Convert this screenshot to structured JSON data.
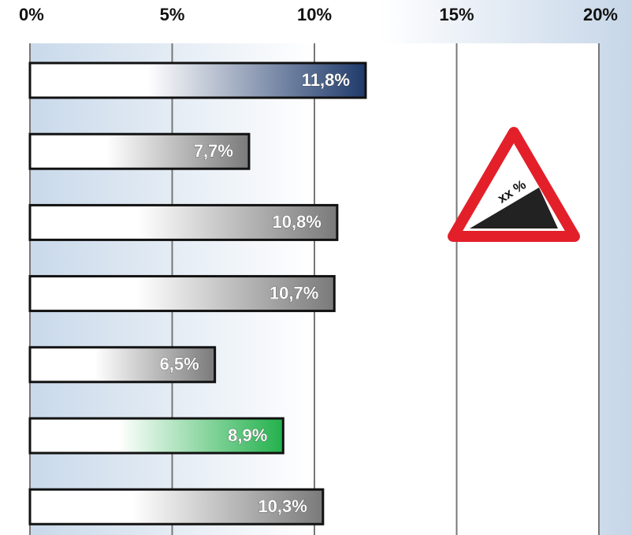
{
  "chart_data": {
    "type": "bar",
    "orientation": "horizontal",
    "categories": [
      null,
      null,
      null,
      null,
      null,
      null,
      null
    ],
    "values": [
      11.8,
      7.7,
      10.8,
      10.7,
      6.5,
      8.9,
      10.3
    ],
    "value_labels": [
      "11,8%",
      "7,7%",
      "10,8%",
      "10,7%",
      "6,5%",
      "8,9%",
      "10,3%"
    ],
    "colors": [
      "#1f3a6b",
      "#7a7a7a",
      "#7a7a7a",
      "#7a7a7a",
      "#7a7a7a",
      "#22b14c",
      "#7a7a7a"
    ],
    "xlim": [
      0,
      20
    ],
    "xticks": [
      {
        "value": 0,
        "label": "0%"
      },
      {
        "value": 5,
        "label": "5%"
      },
      {
        "value": 10,
        "label": "10%"
      },
      {
        "value": 15,
        "label": "15%"
      },
      {
        "value": 20,
        "label": "20%"
      }
    ],
    "grid": true,
    "annotation": "xx %"
  }
}
